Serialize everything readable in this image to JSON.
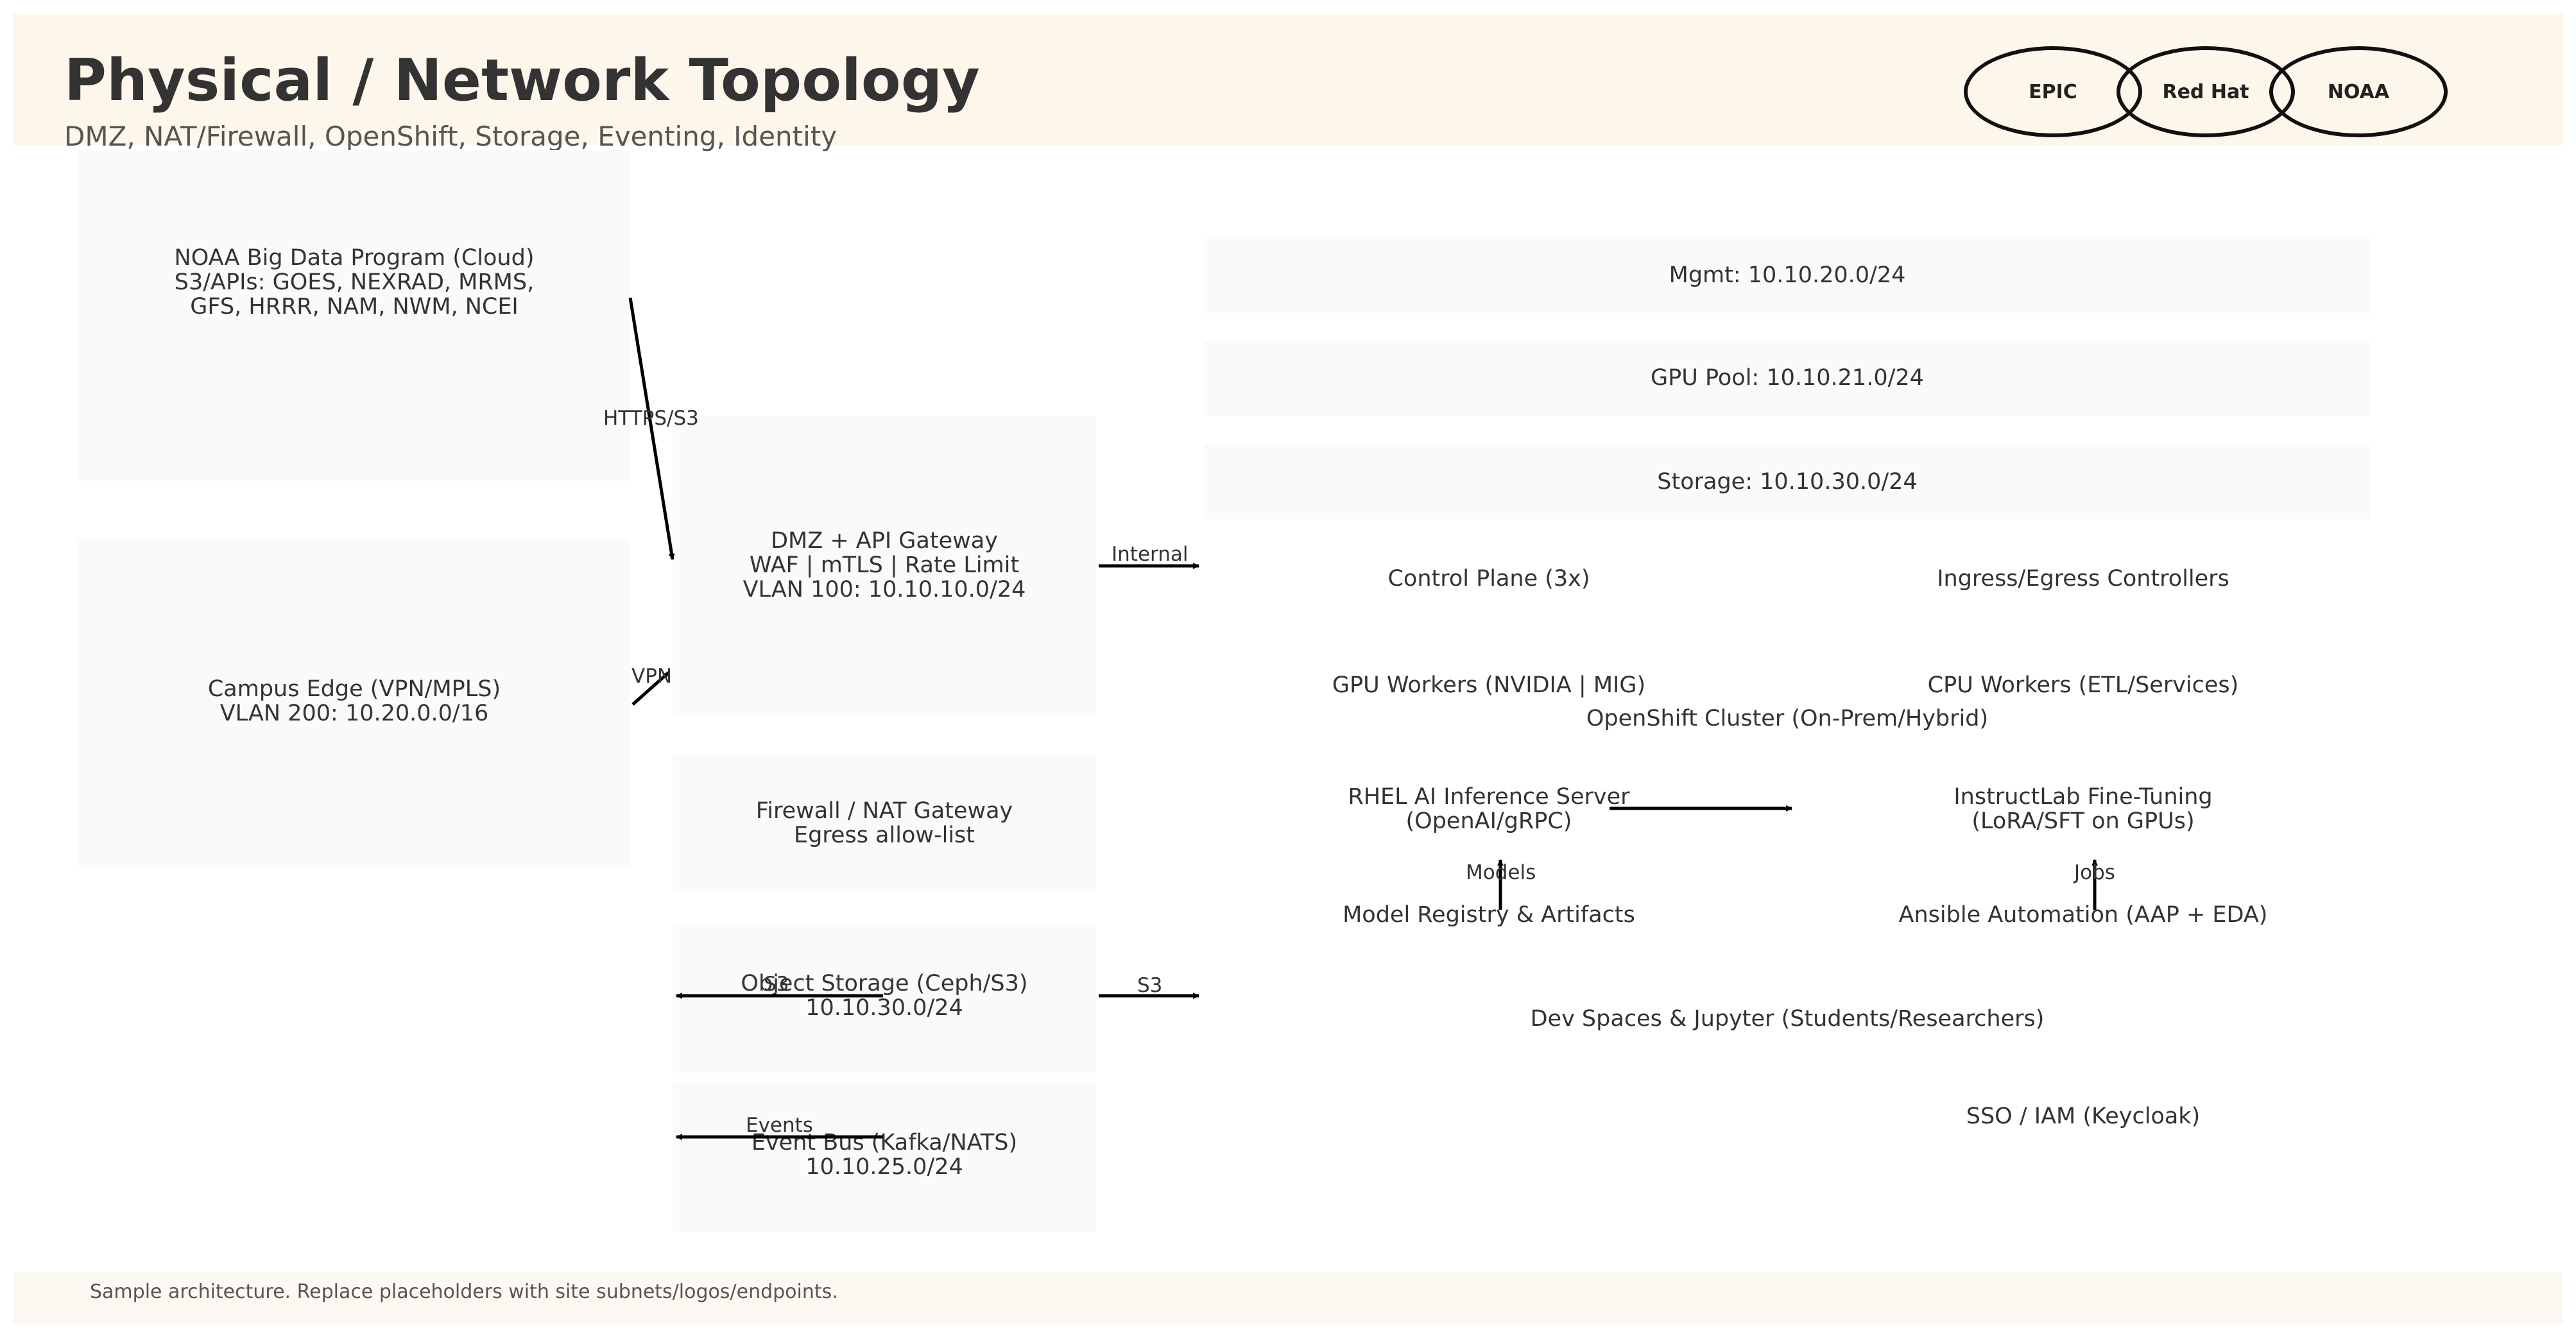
{
  "header": {
    "title": "Physical / Network Topology",
    "subtitle": "DMZ, NAT/Firewall, OpenShift, Storage, Eventing, Identity"
  },
  "logos": [
    "EPIC",
    "Red Hat",
    "NOAA"
  ],
  "left_zone": {
    "noaa_cloud": "NOAA Big Data Program (Cloud)\nS3/APIs: GOES, NEXRAD, MRMS,\nGFS, HRRR, NAM, NWM, NCEI",
    "campus_edge": "Campus Edge (VPN/MPLS)\nVLAN 200: 10.20.0.0/16"
  },
  "middle_zone": {
    "dmz": "DMZ + API Gateway\nWAF | mTLS | Rate Limit\nVLAN 100: 10.10.10.0/24",
    "firewall": "Firewall / NAT Gateway\nEgress allow-list",
    "object_storage": "Object Storage (Ceph/S3)\n10.10.30.0/24",
    "event_bus": "Event Bus (Kafka/NATS)\n10.10.25.0/24"
  },
  "subnets": {
    "mgmt": "Mgmt: 10.10.20.0/24",
    "gpu_pool": "GPU Pool: 10.10.21.0/24",
    "storage": "Storage: 10.10.30.0/24"
  },
  "cluster": {
    "control_plane": "Control Plane (3x)",
    "ingress": "Ingress/Egress Controllers",
    "gpu_workers": "GPU Workers (NVIDIA | MIG)",
    "cpu_workers": "CPU Workers (ETL/Services)",
    "cluster_label": "OpenShift Cluster (On-Prem/Hybrid)",
    "rhel_ai": "RHEL AI Inference Server\n(OpenAI/gRPC)",
    "instructlab": "InstructLab Fine-Tuning\n(LoRA/SFT on GPUs)",
    "model_registry": "Model Registry & Artifacts",
    "ansible": "Ansible Automation (AAP + EDA)",
    "dev_spaces": "Dev Spaces & Jupyter (Students/Researchers)",
    "sso": "SSO / IAM (Keycloak)"
  },
  "edge_labels": {
    "https_s3": "HTTPS/S3",
    "vpn": "VPN",
    "internal": "Internal",
    "s3_left": "S3",
    "s3_right": "S3",
    "events": "Events",
    "models": "Models",
    "jobs": "Jobs"
  },
  "footer": {
    "note": "Sample architecture. Replace placeholders with site subnets/logos/endpoints."
  }
}
